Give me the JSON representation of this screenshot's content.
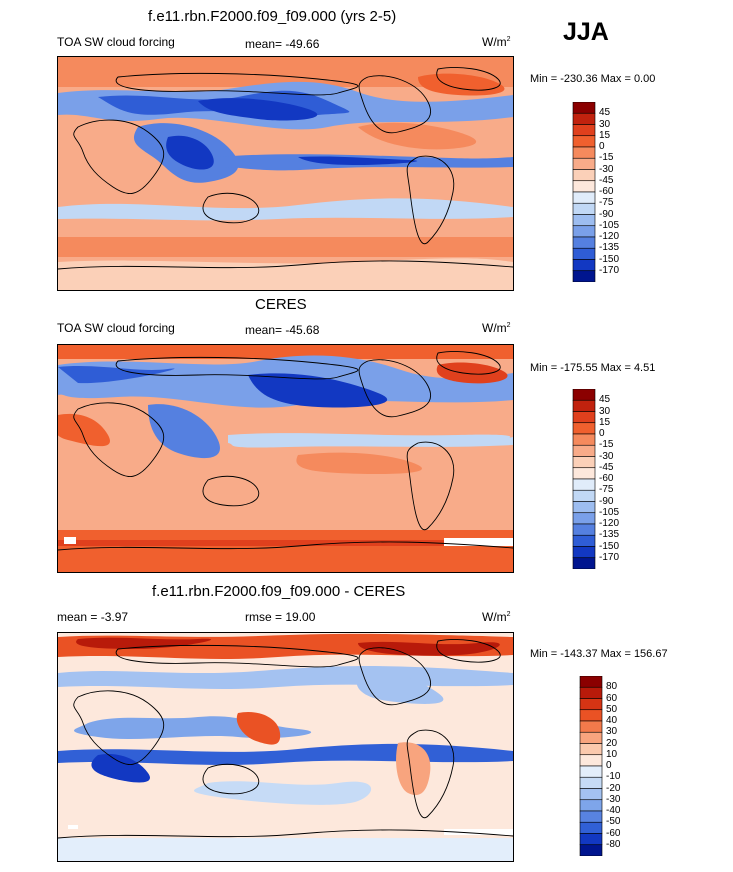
{
  "season": "JJA",
  "panels": [
    {
      "title": "f.e11.rbn.F2000.f09_f09.000 (yrs 2-5)",
      "left_label": "TOA SW cloud forcing",
      "center_label": "mean= -49.66",
      "units": "W/m",
      "units_sup": "2",
      "minmax": "Min = -230.36 Max =   0.00",
      "colorbar": {
        "labels": [
          "45",
          "30",
          "15",
          "0",
          "-15",
          "-30",
          "-45",
          "-60",
          "-75",
          "-90",
          "-105",
          "-120",
          "-135",
          "-150",
          "-170"
        ],
        "colors": [
          "#8b0000",
          "#c1220e",
          "#e0401d",
          "#f0602e",
          "#f58a5d",
          "#f8ab89",
          "#fbd0b8",
          "#fde8dc",
          "#e0ecfa",
          "#c1d8f5",
          "#9dbdf0",
          "#7aa0e9",
          "#5580e0",
          "#2f5dd6",
          "#1238c2",
          "#00158f"
        ]
      }
    },
    {
      "title": "CERES",
      "left_label": "TOA SW cloud forcing",
      "center_label": "mean= -45.68",
      "units": "W/m",
      "units_sup": "2",
      "minmax": "Min = -175.55 Max =   4.51",
      "colorbar": {
        "labels": [
          "45",
          "30",
          "15",
          "0",
          "-15",
          "-30",
          "-45",
          "-60",
          "-75",
          "-90",
          "-105",
          "-120",
          "-135",
          "-150",
          "-170"
        ],
        "colors": [
          "#8b0000",
          "#c1220e",
          "#e0401d",
          "#f0602e",
          "#f58a5d",
          "#f8ab89",
          "#fbd0b8",
          "#fde8dc",
          "#e0ecfa",
          "#c1d8f5",
          "#9dbdf0",
          "#7aa0e9",
          "#5580e0",
          "#2f5dd6",
          "#1238c2",
          "#00158f"
        ]
      }
    },
    {
      "title": "f.e11.rbn.F2000.f09_f09.000 - CERES",
      "left_label": "mean =  -3.97",
      "center_label": "rmse =  19.00",
      "units": "W/m",
      "units_sup": "2",
      "minmax": "Min = -143.37 Max = 156.67",
      "colorbar": {
        "labels": [
          "80",
          "60",
          "50",
          "40",
          "30",
          "20",
          "10",
          "0",
          "-10",
          "-20",
          "-30",
          "-40",
          "-50",
          "-60",
          "-80"
        ],
        "colors": [
          "#8b0000",
          "#b81a0a",
          "#d63414",
          "#ea5224",
          "#f37a4b",
          "#f8a47e",
          "#fbc9ad",
          "#fde8dc",
          "#e3eefb",
          "#c6dbf6",
          "#a4c2f1",
          "#7ea5ea",
          "#5883e1",
          "#3160d6",
          "#1238c2",
          "#00158f"
        ]
      }
    }
  ],
  "chart_data": [
    {
      "type": "heatmap",
      "title": "f.e11.rbn.F2000.f09_f09.000 (yrs 2-5)",
      "variable": "TOA SW cloud forcing",
      "season": "JJA",
      "mean": -49.66,
      "min": -230.36,
      "max": 0.0,
      "units": "W/m2",
      "contour_levels": [
        45,
        30,
        15,
        0,
        -15,
        -30,
        -45,
        -60,
        -75,
        -90,
        -105,
        -120,
        -135,
        -150,
        -170
      ]
    },
    {
      "type": "heatmap",
      "title": "CERES",
      "variable": "TOA SW cloud forcing",
      "season": "JJA",
      "mean": -45.68,
      "min": -175.55,
      "max": 4.51,
      "units": "W/m2",
      "contour_levels": [
        45,
        30,
        15,
        0,
        -15,
        -30,
        -45,
        -60,
        -75,
        -90,
        -105,
        -120,
        -135,
        -150,
        -170
      ]
    },
    {
      "type": "heatmap",
      "title": "f.e11.rbn.F2000.f09_f09.000 - CERES",
      "season": "JJA",
      "mean": -3.97,
      "rmse": 19.0,
      "min": -143.37,
      "max": 156.67,
      "units": "W/m2",
      "contour_levels": [
        80,
        60,
        50,
        40,
        30,
        20,
        10,
        0,
        -10,
        -20,
        -30,
        -40,
        -50,
        -60,
        -80
      ]
    }
  ]
}
